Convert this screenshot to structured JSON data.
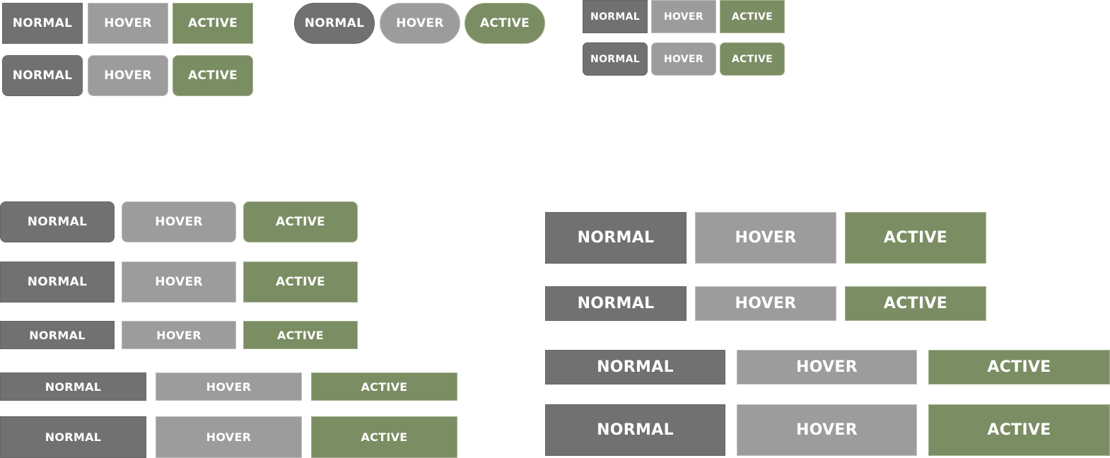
{
  "labels": {
    "normal": "NORMAL",
    "hover": "HOVER",
    "active": "ACTIVE"
  },
  "states": [
    "normal",
    "hover",
    "active"
  ],
  "colors": {
    "normal": "#717171",
    "hover": "#9c9c9c",
    "active": "#7b8d63",
    "text": "#ffffff"
  }
}
